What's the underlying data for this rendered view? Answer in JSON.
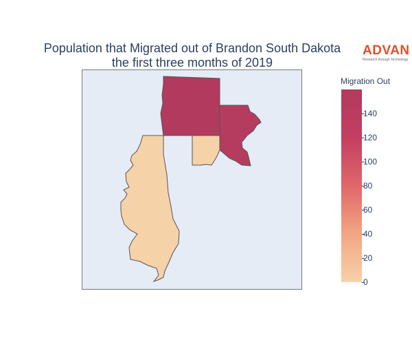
{
  "title": {
    "line1": "Population that Migrated out of Brandon South Dakota",
    "line2": "the first three months of 2019"
  },
  "logo": {
    "word": "ADVAN",
    "tagline": "Research through Technology",
    "color": "#e0502a"
  },
  "map": {
    "background_color": "#e5ecf6",
    "regions": [
      {
        "id": "north-block",
        "migration_out": 155,
        "color": "#b23a5e"
      },
      {
        "id": "northeast-block",
        "migration_out": 150,
        "color": "#b53b5f"
      },
      {
        "id": "small-block",
        "migration_out": 5,
        "color": "#f6d2a9"
      },
      {
        "id": "west-strip",
        "migration_out": 5,
        "color": "#f6d2a9"
      }
    ]
  },
  "colorbar": {
    "title": "Migration Out",
    "min": 0,
    "max": 160,
    "ticks": [
      0,
      20,
      40,
      60,
      80,
      100,
      120,
      140
    ],
    "tick_labels": [
      "0",
      "20",
      "40",
      "60",
      "80",
      "100",
      "120",
      "140"
    ],
    "colorscale": [
      "#f6d2a9",
      "#f3a683",
      "#e0676a",
      "#c33e62",
      "#b23a5e"
    ]
  }
}
